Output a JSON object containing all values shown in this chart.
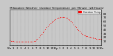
{
  "title": "Milwaukee Weather  Outdoor Temperature  per Minute  (24 Hours)",
  "background_color": "#c8c8c8",
  "plot_bg_color": "#c8c8c8",
  "dot_color": "#ff0000",
  "dot_size": 0.8,
  "ylim": [
    0,
    90
  ],
  "xlim": [
    0,
    1440
  ],
  "yticks": [
    10,
    20,
    30,
    40,
    50,
    60,
    70,
    80
  ],
  "ytick_labels": [
    "10",
    "20",
    "30",
    "40",
    "50",
    "60",
    "70",
    "80"
  ],
  "xtick_positions": [
    0,
    60,
    120,
    180,
    240,
    300,
    360,
    420,
    480,
    540,
    600,
    660,
    720,
    780,
    840,
    900,
    960,
    1020,
    1080,
    1140,
    1200,
    1260,
    1320,
    1380,
    1440
  ],
  "xtick_labels": [
    "12a",
    "1",
    "2",
    "3",
    "4",
    "5",
    "6",
    "7",
    "8",
    "9",
    "10",
    "11",
    "12p",
    "1",
    "2",
    "3",
    "4",
    "5",
    "6",
    "7",
    "8",
    "9",
    "10",
    "11",
    "12a"
  ],
  "grid_color": "#888888",
  "legend_color": "#ff0000",
  "legend_label": "Outdoor Temp",
  "temperature_curve": [
    [
      0,
      12
    ],
    [
      20,
      11
    ],
    [
      40,
      10
    ],
    [
      60,
      10
    ],
    [
      80,
      9
    ],
    [
      100,
      9
    ],
    [
      120,
      9
    ],
    [
      140,
      9
    ],
    [
      160,
      9
    ],
    [
      180,
      9
    ],
    [
      200,
      9
    ],
    [
      220,
      9
    ],
    [
      240,
      8
    ],
    [
      260,
      8
    ],
    [
      280,
      8
    ],
    [
      300,
      8
    ],
    [
      320,
      8
    ],
    [
      340,
      8
    ],
    [
      360,
      9
    ],
    [
      380,
      10
    ],
    [
      400,
      11
    ],
    [
      420,
      13
    ],
    [
      440,
      16
    ],
    [
      460,
      20
    ],
    [
      480,
      24
    ],
    [
      500,
      28
    ],
    [
      520,
      32
    ],
    [
      540,
      36
    ],
    [
      560,
      40
    ],
    [
      580,
      44
    ],
    [
      600,
      48
    ],
    [
      620,
      52
    ],
    [
      640,
      55
    ],
    [
      660,
      58
    ],
    [
      680,
      61
    ],
    [
      700,
      63
    ],
    [
      720,
      65
    ],
    [
      740,
      67
    ],
    [
      760,
      68
    ],
    [
      780,
      69
    ],
    [
      800,
      70
    ],
    [
      820,
      71
    ],
    [
      840,
      71
    ],
    [
      860,
      70
    ],
    [
      880,
      69
    ],
    [
      900,
      68
    ],
    [
      920,
      66
    ],
    [
      940,
      63
    ],
    [
      960,
      60
    ],
    [
      980,
      56
    ],
    [
      1000,
      52
    ],
    [
      1020,
      48
    ],
    [
      1040,
      44
    ],
    [
      1060,
      40
    ],
    [
      1080,
      37
    ],
    [
      1100,
      34
    ],
    [
      1120,
      31
    ],
    [
      1140,
      28
    ],
    [
      1160,
      26
    ],
    [
      1180,
      24
    ],
    [
      1200,
      23
    ],
    [
      1220,
      22
    ],
    [
      1240,
      21
    ],
    [
      1260,
      20
    ],
    [
      1280,
      19
    ],
    [
      1300,
      18
    ],
    [
      1320,
      17
    ],
    [
      1340,
      17
    ],
    [
      1360,
      16
    ],
    [
      1380,
      16
    ],
    [
      1400,
      15
    ],
    [
      1420,
      15
    ],
    [
      1440,
      15
    ]
  ]
}
